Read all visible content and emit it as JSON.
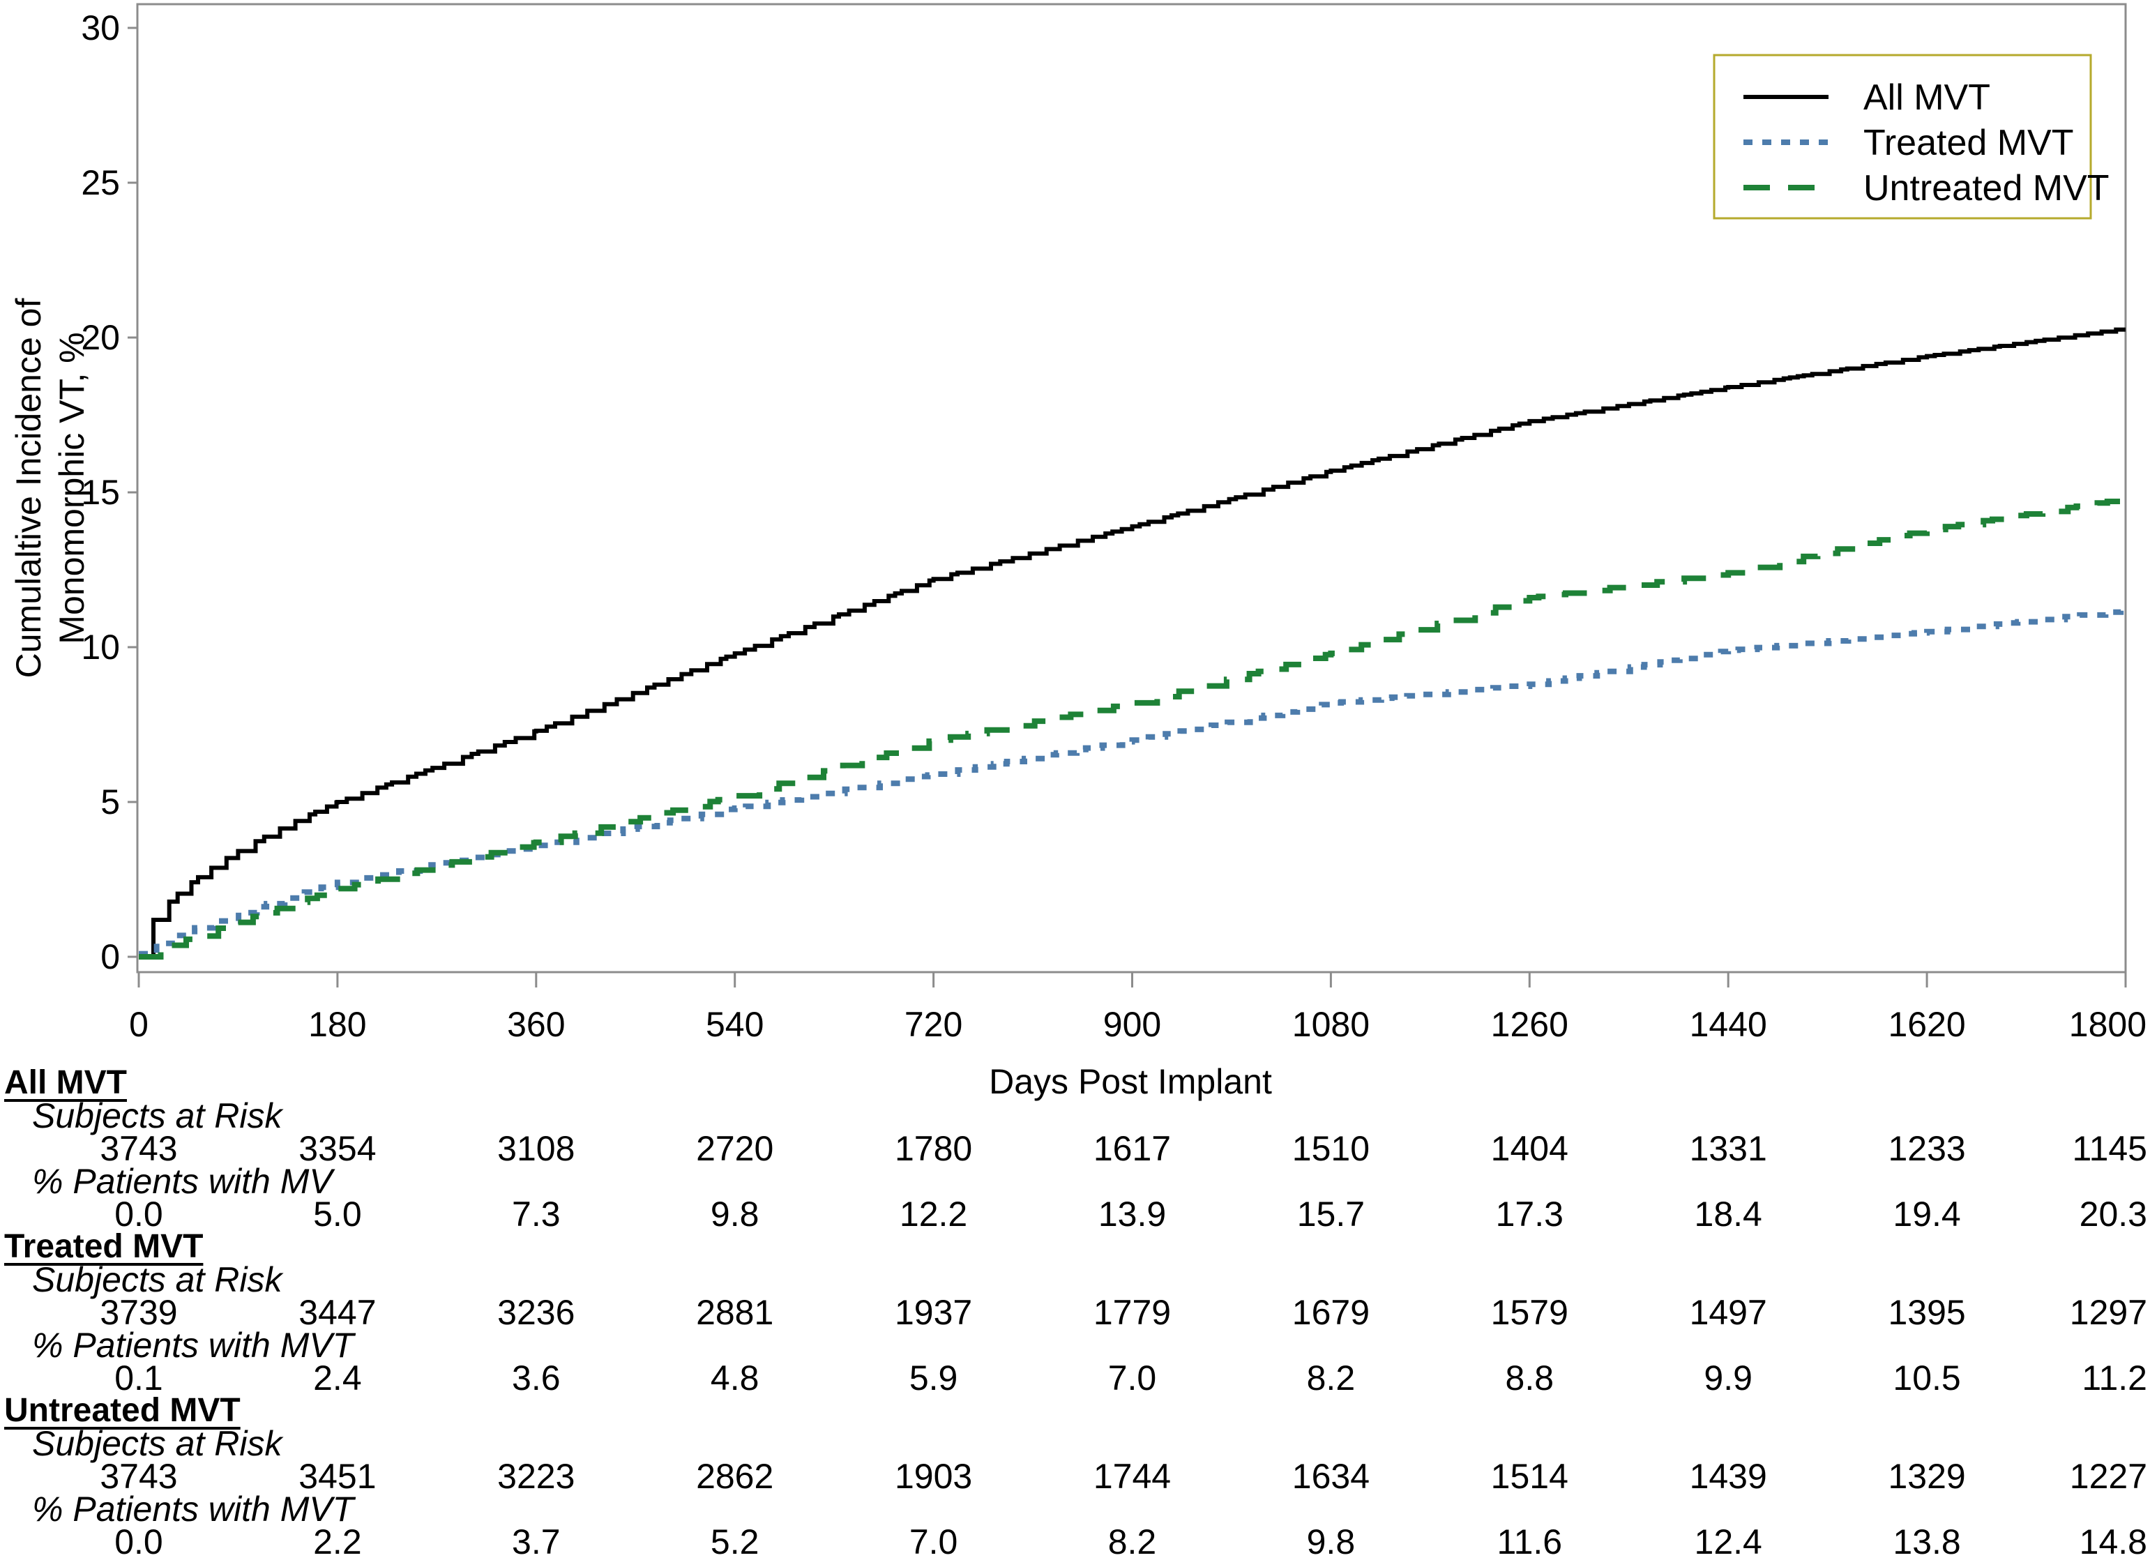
{
  "figure": {
    "ylabel_line1": "Cumulaltive Incidence of",
    "ylabel_line2": "Monomorphic VT, %",
    "xlabel": "Days Post Implant",
    "y_ticks": [
      "0",
      "5",
      "10",
      "15",
      "20",
      "25",
      "30"
    ],
    "x_ticks": [
      "0",
      "180",
      "360",
      "540",
      "720",
      "900",
      "1080",
      "1260",
      "1440",
      "1620",
      "1800"
    ],
    "frame_color": "#8c8c8c",
    "tick_color": "#8c8c8c"
  },
  "legend": {
    "border_color": "#b5aa2d",
    "items": [
      {
        "label": "All MVT",
        "style": "solid",
        "color": "#000000"
      },
      {
        "label": "Treated MVT",
        "style": "dotted",
        "color": "#4d7cac"
      },
      {
        "label": "Untreated MVT",
        "style": "dashed",
        "color": "#1e8237"
      }
    ]
  },
  "chart_data": {
    "type": "line",
    "render": "step",
    "title": "",
    "xlabel": "Days Post Implant",
    "ylabel": "Cumulaltive Incidence of Monomorphic VT, %",
    "xlim": [
      0,
      1800
    ],
    "ylim": [
      0,
      30
    ],
    "grid": false,
    "legend_position": "top-right",
    "x": [
      0,
      180,
      360,
      540,
      720,
      900,
      1080,
      1260,
      1440,
      1620,
      1800
    ],
    "series": [
      {
        "name": "All MVT",
        "style": "solid",
        "color": "#000000",
        "values": [
          0.0,
          5.0,
          7.3,
          9.8,
          12.2,
          13.9,
          15.7,
          17.3,
          18.4,
          19.4,
          20.3
        ]
      },
      {
        "name": "Treated MVT",
        "style": "dotted",
        "color": "#4d7cac",
        "values": [
          0.1,
          2.4,
          3.6,
          4.8,
          5.9,
          7.0,
          8.2,
          8.8,
          9.9,
          10.5,
          11.2
        ]
      },
      {
        "name": "Untreated MVT",
        "style": "dashed",
        "color": "#1e8237",
        "values": [
          0.0,
          2.2,
          3.7,
          5.2,
          7.0,
          8.2,
          9.8,
          11.6,
          12.4,
          13.8,
          14.8
        ]
      }
    ]
  },
  "table": {
    "groups": [
      {
        "name": "All MVT",
        "risk_label": "Subjects at Risk",
        "risk_values": [
          "3743",
          "3354",
          "3108",
          "2720",
          "1780",
          "1617",
          "1510",
          "1404",
          "1331",
          "1233",
          "1145"
        ],
        "pct_label": "% Patients with MV",
        "pct_values": [
          "0.0",
          "5.0",
          "7.3",
          "9.8",
          "12.2",
          "13.9",
          "15.7",
          "17.3",
          "18.4",
          "19.4",
          "20.3"
        ]
      },
      {
        "name": "Treated MVT",
        "risk_label": "Subjects at Risk",
        "risk_values": [
          "3739",
          "3447",
          "3236",
          "2881",
          "1937",
          "1779",
          "1679",
          "1579",
          "1497",
          "1395",
          "1297"
        ],
        "pct_label": "% Patients with MVT",
        "pct_values": [
          "0.1",
          "2.4",
          "3.6",
          "4.8",
          "5.9",
          "7.0",
          "8.2",
          "8.8",
          "9.9",
          "10.5",
          "11.2"
        ]
      },
      {
        "name": "Untreated MVT",
        "risk_label": "Subjects at Risk",
        "risk_values": [
          "3743",
          "3451",
          "3223",
          "2862",
          "1903",
          "1744",
          "1634",
          "1514",
          "1439",
          "1329",
          "1227"
        ],
        "pct_label": "% Patients with MVT",
        "pct_values": [
          "0.0",
          "2.2",
          "3.7",
          "5.2",
          "7.0",
          "8.2",
          "9.8",
          "11.6",
          "12.4",
          "13.8",
          "14.8"
        ]
      }
    ]
  }
}
